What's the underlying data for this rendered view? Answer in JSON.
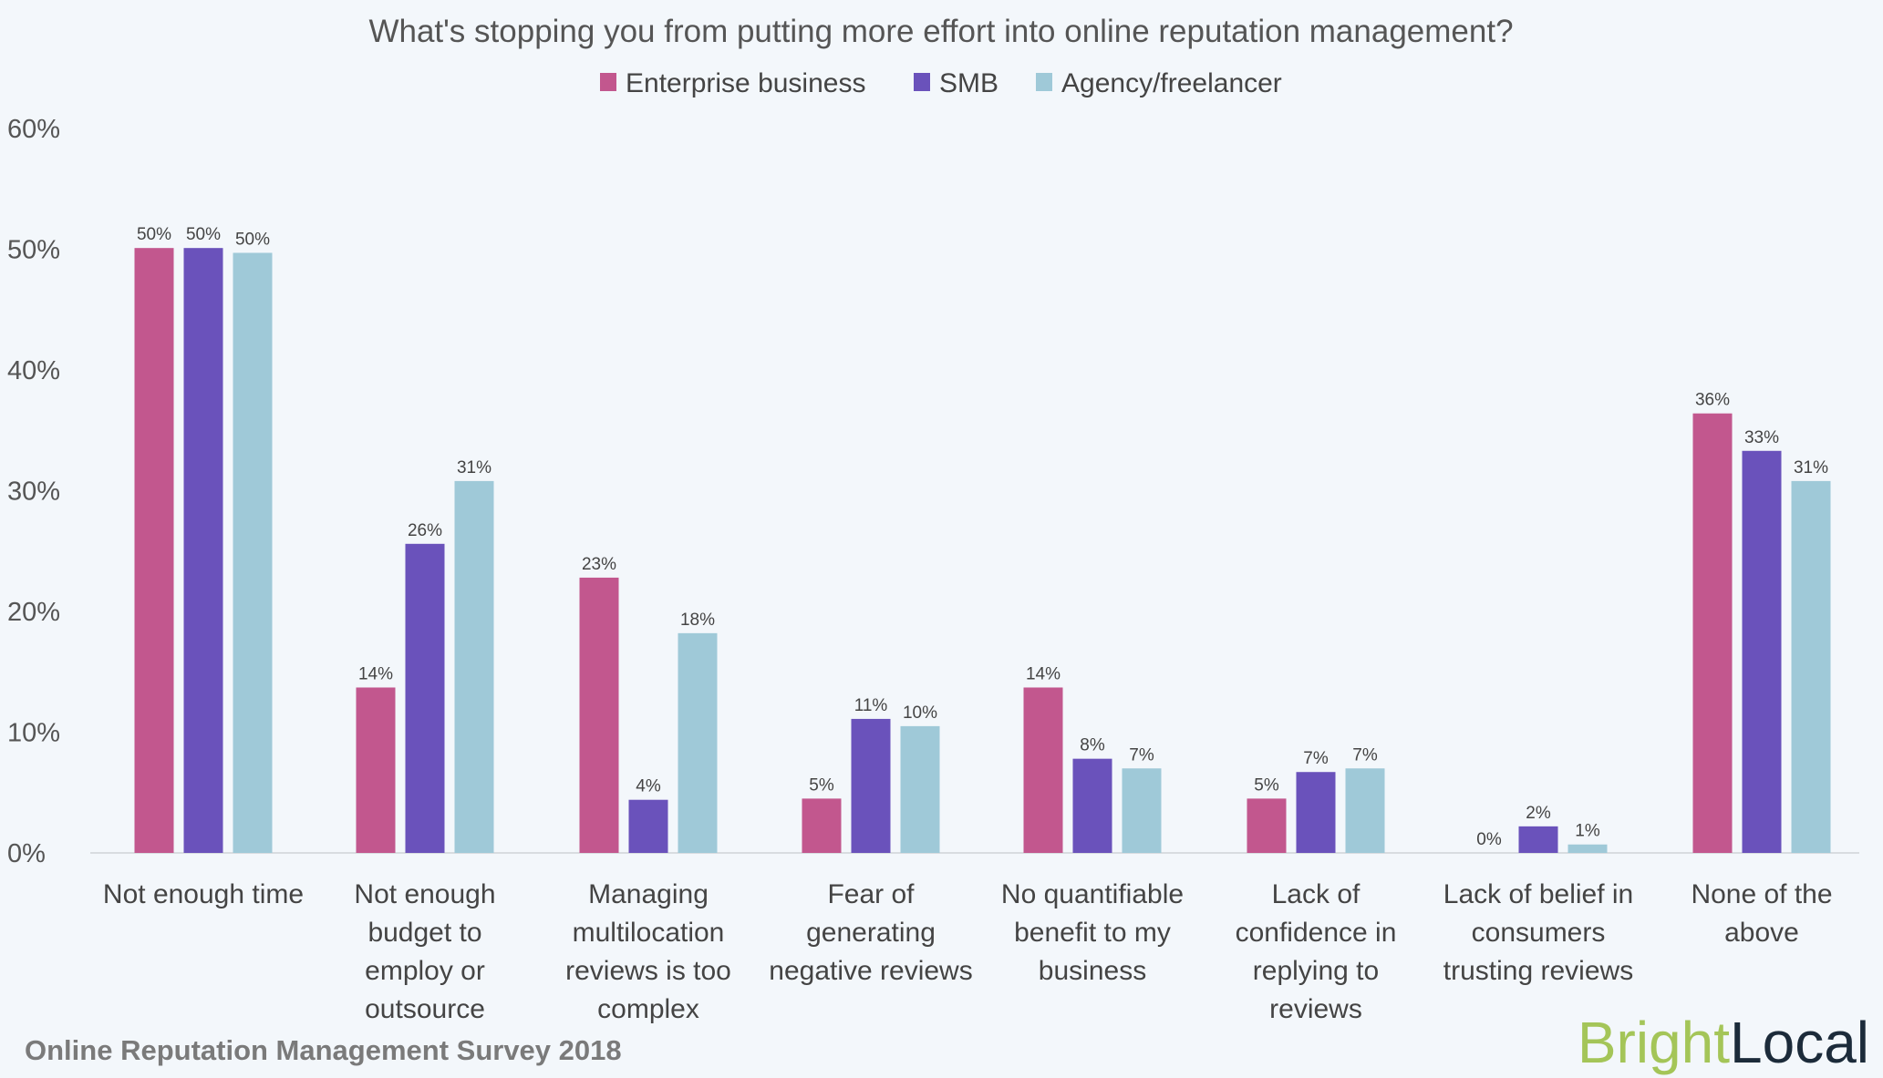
{
  "chart_data": {
    "type": "bar",
    "title": "What's stopping you from putting more effort into online reputation management?",
    "categories": [
      [
        "Not enough time"
      ],
      [
        "Not enough",
        "budget to",
        "employ or",
        "outsource"
      ],
      [
        "Managing",
        "multilocation",
        "reviews is too",
        "complex"
      ],
      [
        "Fear of",
        "generating",
        "negative reviews"
      ],
      [
        "No quantifiable",
        "benefit to my",
        "business"
      ],
      [
        "Lack of",
        "confidence in",
        "replying to",
        "reviews"
      ],
      [
        "Lack of belief in",
        "consumers",
        "trusting reviews"
      ],
      [
        "None of the",
        "above"
      ]
    ],
    "series": [
      {
        "name": "Enterprise business",
        "color": "#c2578e",
        "values": [
          50.1,
          13.7,
          22.8,
          4.5,
          13.7,
          4.5,
          0,
          36.4
        ],
        "labels": [
          "50%",
          "14%",
          "23%",
          "5%",
          "14%",
          "5%",
          "0%",
          "36%"
        ]
      },
      {
        "name": "SMB",
        "color": "#6a52bb",
        "values": [
          50.1,
          25.6,
          4.4,
          11.1,
          7.8,
          6.7,
          2.2,
          33.3
        ],
        "labels": [
          "50%",
          "26%",
          "4%",
          "11%",
          "8%",
          "7%",
          "2%",
          "33%"
        ]
      },
      {
        "name": "Agency/freelancer",
        "color": "#9fc9d8",
        "values": [
          49.7,
          30.8,
          18.2,
          10.5,
          7.0,
          7.0,
          0.7,
          30.8
        ],
        "labels": [
          "50%",
          "31%",
          "18%",
          "10%",
          "7%",
          "7%",
          "1%",
          "31%"
        ]
      }
    ],
    "yticks": [
      "0%",
      "10%",
      "20%",
      "30%",
      "40%",
      "50%",
      "60%"
    ],
    "ylim": [
      0,
      60
    ],
    "grid": false,
    "legend_placement": "top-center",
    "xlabel": "",
    "ylabel": ""
  },
  "footer": "Online Reputation Management Survey 2018",
  "logo": {
    "part1": "Bright",
    "part2": "Local",
    "color1": "#a4c558",
    "color2": "#1c2b3a"
  }
}
